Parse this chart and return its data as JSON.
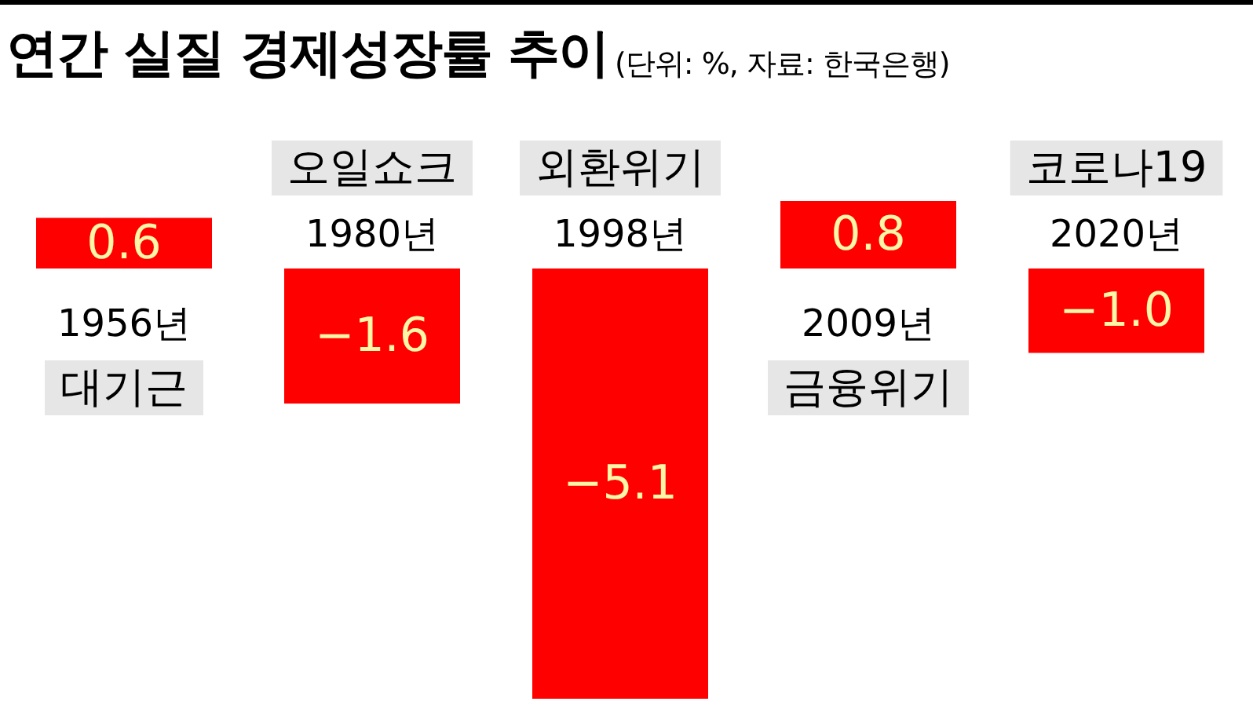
{
  "chart_data": {
    "type": "bar",
    "title": "연간 실질 경제성장률 추이",
    "subtitle": "(단위: %, 자료: 한국은행)",
    "categories": [
      "1956년",
      "1980년",
      "1998년",
      "2009년",
      "2020년"
    ],
    "values": [
      0.6,
      -1.6,
      -5.1,
      0.8,
      -1.0
    ],
    "color": "#ff0000",
    "value_labels": [
      "0.6",
      "−1.6",
      "−5.1",
      "0.8",
      "−1.0"
    ],
    "annotations": [
      "대기근",
      "오일쇼크",
      "외환위기",
      "금융위기",
      "코로나19"
    ]
  }
}
